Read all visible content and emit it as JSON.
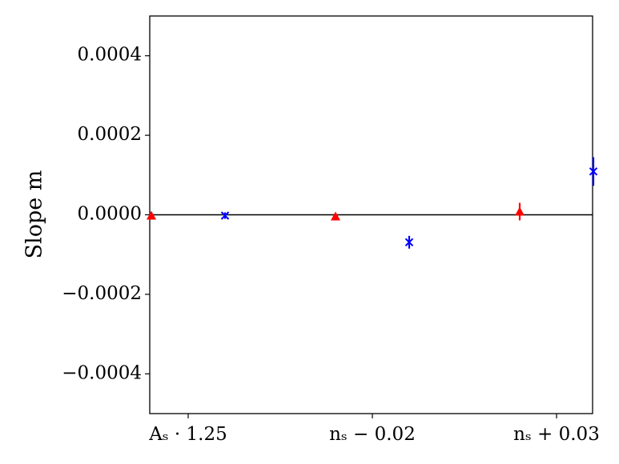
{
  "chart_data": {
    "type": "errorbar",
    "ylabel": "Slope m",
    "categories": [
      "Aₛ · 1.25",
      "nₛ − 0.02",
      "nₛ + 0.03"
    ],
    "series": [
      {
        "color": "red",
        "marker": "triangle",
        "offset": -0.2,
        "values": [
          -2e-06,
          -4e-06,
          8e-06
        ],
        "errors": [
          6e-06,
          6e-06,
          2.2e-05
        ]
      },
      {
        "color": "blue",
        "marker": "x",
        "offset": 0.2,
        "values": [
          -2e-06,
          -6.9e-05,
          0.000109
        ],
        "errors": [
          8e-06,
          1.6e-05,
          3.6e-05
        ]
      }
    ],
    "ylim": [
      -0.0005,
      0.0005
    ],
    "yticks": [
      0.0004,
      0.0002,
      {
        "value": 0,
        "label": "0.0000"
      },
      {
        "value": -0.0002,
        "label": "−0.0002"
      },
      {
        "value": -0.0004,
        "label": "−0.0004"
      }
    ],
    "hline": 0,
    "grid": false
  }
}
